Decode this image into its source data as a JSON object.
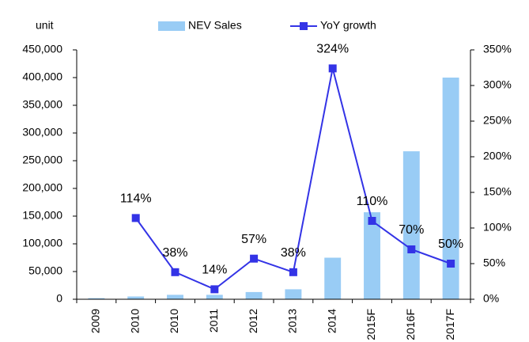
{
  "chart_data": {
    "type": "bar_line",
    "y_axis_label": "unit",
    "categories": [
      "2009",
      "2010",
      "2010",
      "2011",
      "2012",
      "2013",
      "2014",
      "2015F",
      "2016F",
      "2017F"
    ],
    "series": [
      {
        "name": "NEV Sales",
        "type": "bar",
        "color": "#99ccf5",
        "values": [
          2000,
          5000,
          8000,
          8000,
          13000,
          18000,
          75000,
          157000,
          267000,
          400000
        ]
      },
      {
        "name": "YoY growth",
        "type": "line",
        "axis": "y2",
        "color": "#3333e6",
        "values": [
          null,
          114,
          38,
          14,
          57,
          38,
          324,
          110,
          70,
          50
        ],
        "value_labels": [
          null,
          "114%",
          "38%",
          "14%",
          "57%",
          "38%",
          "324%",
          "110%",
          "70%",
          "50%"
        ]
      }
    ],
    "ylim": [
      0,
      450000
    ],
    "yticks": [
      0,
      {
        "value": 50000,
        "label": "50,000"
      },
      {
        "value": 100000,
        "label": "100,000"
      },
      {
        "value": 150000,
        "label": "150,000"
      },
      {
        "value": 200000,
        "label": "200,000"
      },
      {
        "value": 250000,
        "label": "250,000"
      },
      {
        "value": 300000,
        "label": "300,000"
      },
      {
        "value": 350000,
        "label": "350,000"
      },
      {
        "value": 400000,
        "label": "400,000"
      },
      {
        "value": 450000,
        "label": "450,000"
      }
    ],
    "y2lim": [
      0,
      350
    ],
    "y2ticks": [
      {
        "value": 0,
        "label": "0%"
      },
      {
        "value": 50,
        "label": "50%"
      },
      {
        "value": 100,
        "label": "100%"
      },
      {
        "value": 150,
        "label": "150%"
      },
      {
        "value": 200,
        "label": "200%"
      },
      {
        "value": 250,
        "label": "250%"
      },
      {
        "value": 300,
        "label": "300%"
      },
      {
        "value": 350,
        "label": "350%"
      }
    ],
    "grid": false
  }
}
